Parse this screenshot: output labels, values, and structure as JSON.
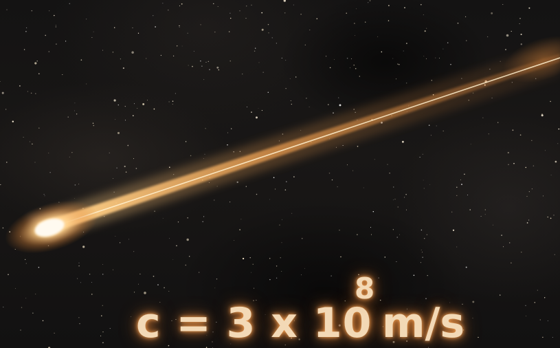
{
  "scene": {
    "subject": "meteor",
    "background": "starfield",
    "glow_color": "#ffb060",
    "text_color": "#f3d9b6"
  },
  "equation": {
    "base": "c = 3 x 10",
    "exponent": "8",
    "unit": "m/s"
  }
}
